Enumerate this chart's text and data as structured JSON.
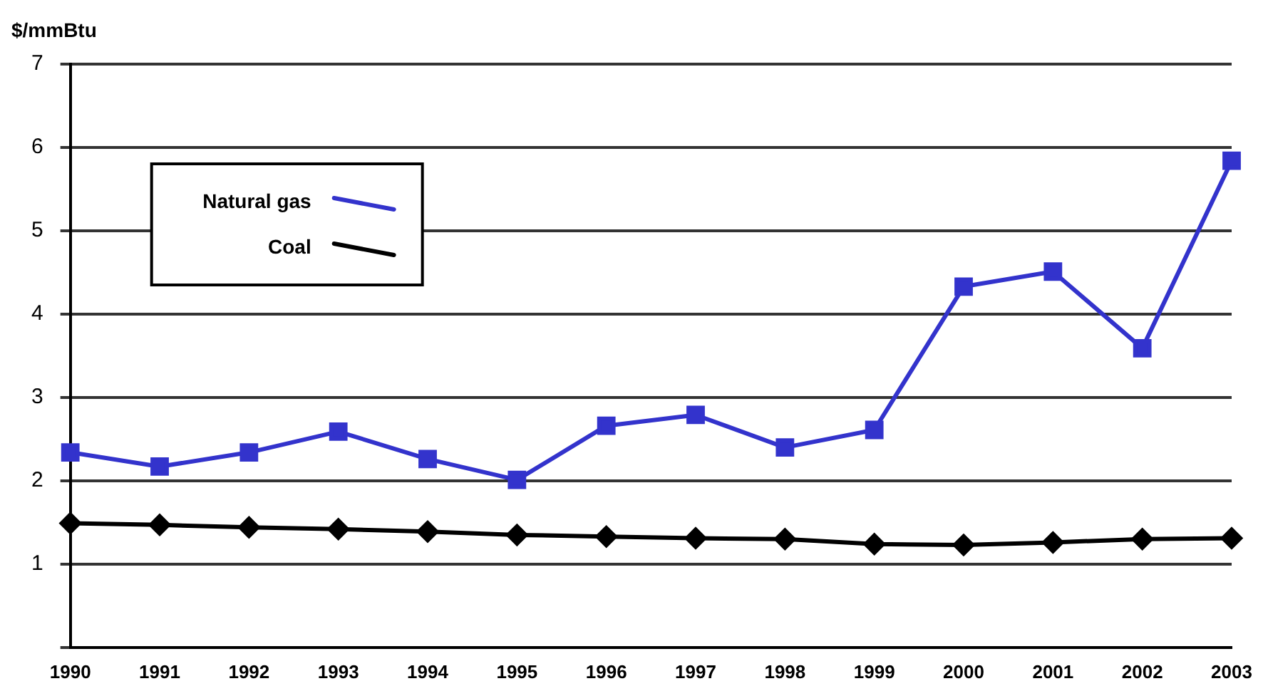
{
  "chart_data": {
    "type": "line",
    "ylabel": "$/mmBtu",
    "categories": [
      "1990",
      "1991",
      "1992",
      "1993",
      "1994",
      "1995",
      "1996",
      "1997",
      "1998",
      "1999",
      "2000",
      "2001",
      "2002",
      "2003"
    ],
    "series": [
      {
        "name": "Natural gas",
        "color": "#3333cc",
        "marker": "square",
        "values": [
          2.34,
          2.17,
          2.34,
          2.59,
          2.26,
          2.01,
          2.66,
          2.79,
          2.4,
          2.61,
          4.33,
          4.51,
          3.59,
          5.84
        ]
      },
      {
        "name": "Coal",
        "color": "#000000",
        "marker": "diamond",
        "values": [
          1.49,
          1.47,
          1.44,
          1.42,
          1.39,
          1.35,
          1.33,
          1.31,
          1.3,
          1.24,
          1.23,
          1.26,
          1.3,
          1.31
        ]
      }
    ],
    "ylim": [
      0,
      7
    ],
    "yticks": [
      {
        "value": 0,
        "label": null
      },
      1,
      2,
      3,
      4,
      5,
      6,
      7
    ],
    "grid": "y",
    "legend": "top left",
    "line_style": "solid"
  }
}
